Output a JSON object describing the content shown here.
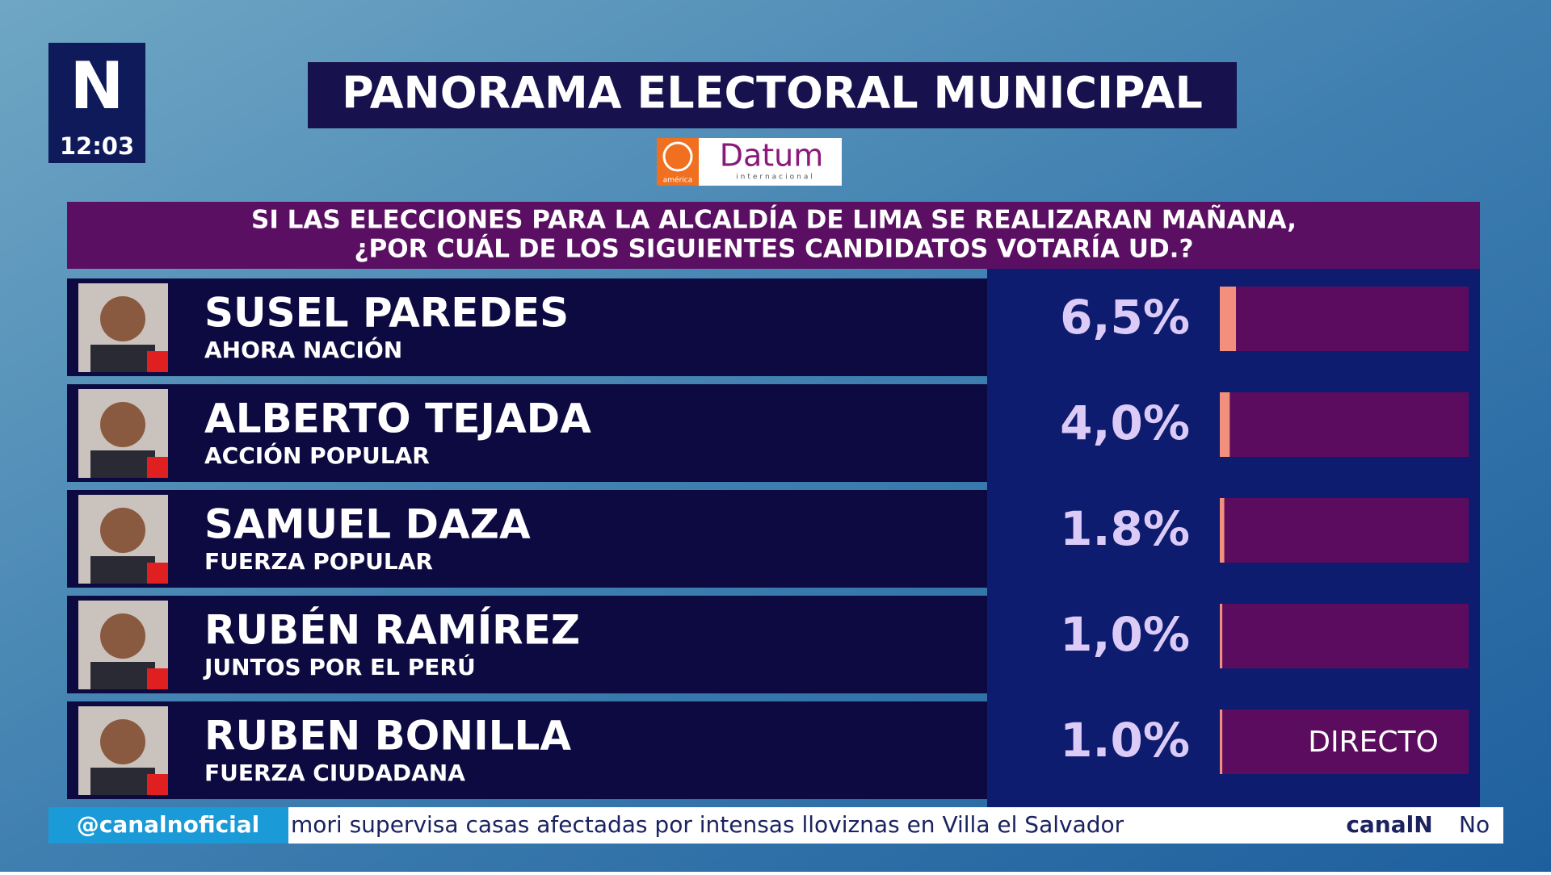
{
  "channel": {
    "logo": "N",
    "time": "12:03"
  },
  "sponsor": {
    "left": "américa",
    "name": "Datum",
    "tagline": "internacional"
  },
  "ticker": {
    "handle": "@canalnoficial",
    "headline": "mori supervisa casas afectadas por intensas lloviznas en Villa el Salvador",
    "brand": "canalN",
    "next": "No"
  },
  "live_badge": "DIRECTO",
  "chart_data": {
    "type": "bar",
    "orientation": "horizontal",
    "title": "PANORAMA ELECTORAL MUNICIPAL",
    "subtitle": [
      "SI LAS ELECCIONES PARA LA ALCALDÍA DE LIMA SE REALIZARAN MAÑANA,",
      "¿POR CUÁL DE LOS SIGUIENTES CANDIDATOS VOTARÍA UD.?"
    ],
    "categories": [
      "SUSEL PAREDES",
      "ALBERTO TEJADA",
      "SAMUEL DAZA",
      "RUBÉN RAMÍREZ",
      "RUBEN BONILLA"
    ],
    "parties": [
      "AHORA NACIÓN",
      "ACCIÓN POPULAR",
      "FUERZA POPULAR",
      "JUNTOS POR EL PERÚ",
      "FUERZA CIUDADANA"
    ],
    "values": [
      6.5,
      4.0,
      1.8,
      1.0,
      1.0
    ],
    "value_labels": [
      "6,5%",
      "4,0%",
      "1.8%",
      "1,0%",
      "1.0%"
    ],
    "color": "#f38f7d",
    "track_color": "#5c0c5e",
    "xlim": [
      0,
      100
    ]
  }
}
